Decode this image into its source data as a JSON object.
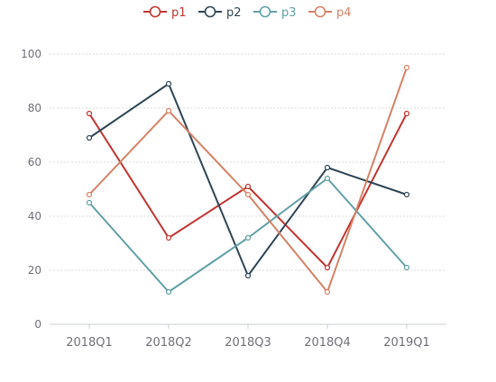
{
  "chart_data": {
    "type": "line",
    "categories": [
      "2018Q1",
      "2018Q2",
      "2018Q3",
      "2018Q4",
      "2019Q1"
    ],
    "ylim": [
      0,
      100
    ],
    "yticks": [
      0,
      20,
      40,
      60,
      80,
      100
    ],
    "grid": true,
    "legend_position": "top-center",
    "series": [
      {
        "name": "p1",
        "color": "#c23531",
        "values": [
          78,
          32,
          51,
          21,
          78
        ]
      },
      {
        "name": "p2",
        "color": "#2f4554",
        "values": [
          69,
          89,
          18,
          58,
          48
        ]
      },
      {
        "name": "p3",
        "color": "#61a0a8",
        "values": [
          45,
          12,
          32,
          54,
          21
        ]
      },
      {
        "name": "p4",
        "color": "#d48265",
        "values": [
          48,
          79,
          48,
          12,
          95
        ]
      }
    ]
  }
}
